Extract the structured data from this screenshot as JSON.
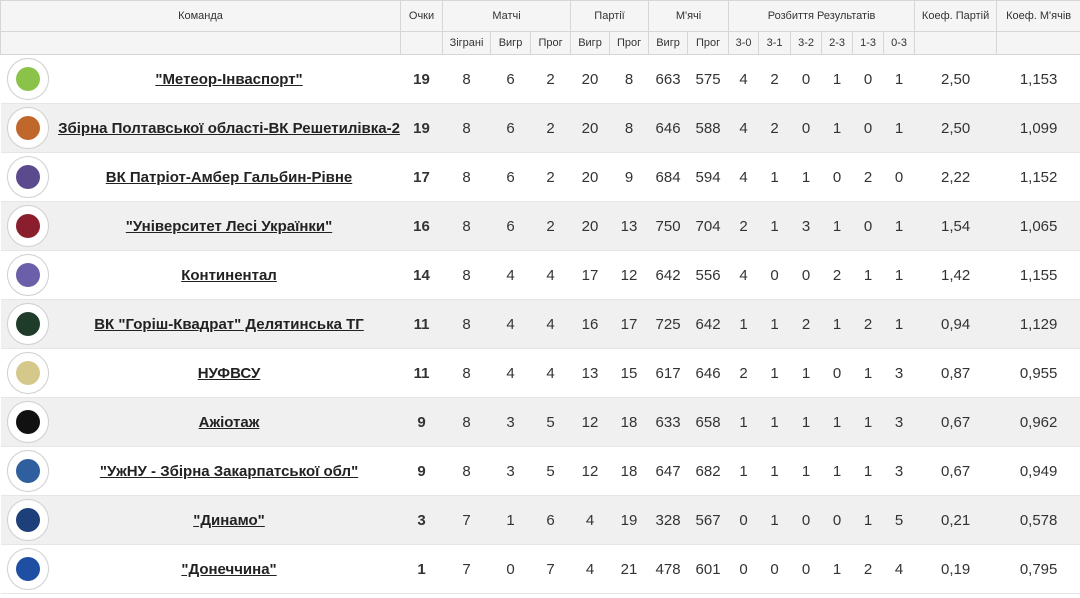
{
  "header": {
    "team": "Команда",
    "points": "Очки",
    "matches": "Матчі",
    "sets": "Партії",
    "balls": "М'ячі",
    "results": "Розбиття Результатів",
    "coef_sets": "Коеф. Партій",
    "coef_balls": "Коеф. М'ячів",
    "played": "Зіграні",
    "won": "Вигр",
    "lost": "Прог",
    "sets_won": "Вигр",
    "sets_lost": "Прог",
    "balls_won": "Вигр",
    "balls_lost": "Прог",
    "r30": "3-0",
    "r31": "3-1",
    "r32": "3-2",
    "r23": "2-3",
    "r13": "1-3",
    "r03": "0-3"
  },
  "rows": [
    {
      "team": "\"Метеор-Інваспорт\"",
      "logo_color": "#8bc34a",
      "points": "19",
      "played": "8",
      "won": "6",
      "lost": "2",
      "sw": "20",
      "sl": "8",
      "bw": "663",
      "bl": "575",
      "r30": "4",
      "r31": "2",
      "r32": "0",
      "r23": "1",
      "r13": "0",
      "r03": "1",
      "cs": "2,50",
      "cb": "1,153"
    },
    {
      "team": "Збірна Полтавської області-ВК Решетилівка-2",
      "logo_color": "#c0672b",
      "points": "19",
      "played": "8",
      "won": "6",
      "lost": "2",
      "sw": "20",
      "sl": "8",
      "bw": "646",
      "bl": "588",
      "r30": "4",
      "r31": "2",
      "r32": "0",
      "r23": "1",
      "r13": "0",
      "r03": "1",
      "cs": "2,50",
      "cb": "1,099"
    },
    {
      "team": "ВК Патріот-Амбер Гальбин-Рівне",
      "logo_color": "#5c4a8f",
      "points": "17",
      "played": "8",
      "won": "6",
      "lost": "2",
      "sw": "20",
      "sl": "9",
      "bw": "684",
      "bl": "594",
      "r30": "4",
      "r31": "1",
      "r32": "1",
      "r23": "0",
      "r13": "2",
      "r03": "0",
      "cs": "2,22",
      "cb": "1,152"
    },
    {
      "team": "\"Університет Лесі Українки\"",
      "logo_color": "#8b1e2d",
      "points": "16",
      "played": "8",
      "won": "6",
      "lost": "2",
      "sw": "20",
      "sl": "13",
      "bw": "750",
      "bl": "704",
      "r30": "2",
      "r31": "1",
      "r32": "3",
      "r23": "1",
      "r13": "0",
      "r03": "1",
      "cs": "1,54",
      "cb": "1,065"
    },
    {
      "team": "Континентал",
      "logo_color": "#6a5fa8",
      "points": "14",
      "played": "8",
      "won": "4",
      "lost": "4",
      "sw": "17",
      "sl": "12",
      "bw": "642",
      "bl": "556",
      "r30": "4",
      "r31": "0",
      "r32": "0",
      "r23": "2",
      "r13": "1",
      "r03": "1",
      "cs": "1,42",
      "cb": "1,155"
    },
    {
      "team": "ВК \"Горіш-Квадрат\" Делятинська ТГ",
      "logo_color": "#1f3b2a",
      "points": "11",
      "played": "8",
      "won": "4",
      "lost": "4",
      "sw": "16",
      "sl": "17",
      "bw": "725",
      "bl": "642",
      "r30": "1",
      "r31": "1",
      "r32": "2",
      "r23": "1",
      "r13": "2",
      "r03": "1",
      "cs": "0,94",
      "cb": "1,129"
    },
    {
      "team": "НУФВСУ",
      "logo_color": "#d4c98a",
      "points": "11",
      "played": "8",
      "won": "4",
      "lost": "4",
      "sw": "13",
      "sl": "15",
      "bw": "617",
      "bl": "646",
      "r30": "2",
      "r31": "1",
      "r32": "1",
      "r23": "0",
      "r13": "1",
      "r03": "3",
      "cs": "0,87",
      "cb": "0,955"
    },
    {
      "team": "Ажіотаж",
      "logo_color": "#111111",
      "points": "9",
      "played": "8",
      "won": "3",
      "lost": "5",
      "sw": "12",
      "sl": "18",
      "bw": "633",
      "bl": "658",
      "r30": "1",
      "r31": "1",
      "r32": "1",
      "r23": "1",
      "r13": "1",
      "r03": "3",
      "cs": "0,67",
      "cb": "0,962"
    },
    {
      "team": "\"УжНУ - Збірна Закарпатської обл\"",
      "logo_color": "#2f5f9e",
      "points": "9",
      "played": "8",
      "won": "3",
      "lost": "5",
      "sw": "12",
      "sl": "18",
      "bw": "647",
      "bl": "682",
      "r30": "1",
      "r31": "1",
      "r32": "1",
      "r23": "1",
      "r13": "1",
      "r03": "3",
      "cs": "0,67",
      "cb": "0,949"
    },
    {
      "team": "\"Динамо\"",
      "logo_color": "#1d3f7a",
      "points": "3",
      "played": "7",
      "won": "1",
      "lost": "6",
      "sw": "4",
      "sl": "19",
      "bw": "328",
      "bl": "567",
      "r30": "0",
      "r31": "1",
      "r32": "0",
      "r23": "0",
      "r13": "1",
      "r03": "5",
      "cs": "0,21",
      "cb": "0,578"
    },
    {
      "team": "\"Донеччина\"",
      "logo_color": "#1f4fa3",
      "points": "1",
      "played": "7",
      "won": "0",
      "lost": "7",
      "sw": "4",
      "sl": "21",
      "bw": "478",
      "bl": "601",
      "r30": "0",
      "r31": "0",
      "r32": "0",
      "r23": "1",
      "r13": "2",
      "r03": "4",
      "cs": "0,19",
      "cb": "0,795"
    }
  ]
}
